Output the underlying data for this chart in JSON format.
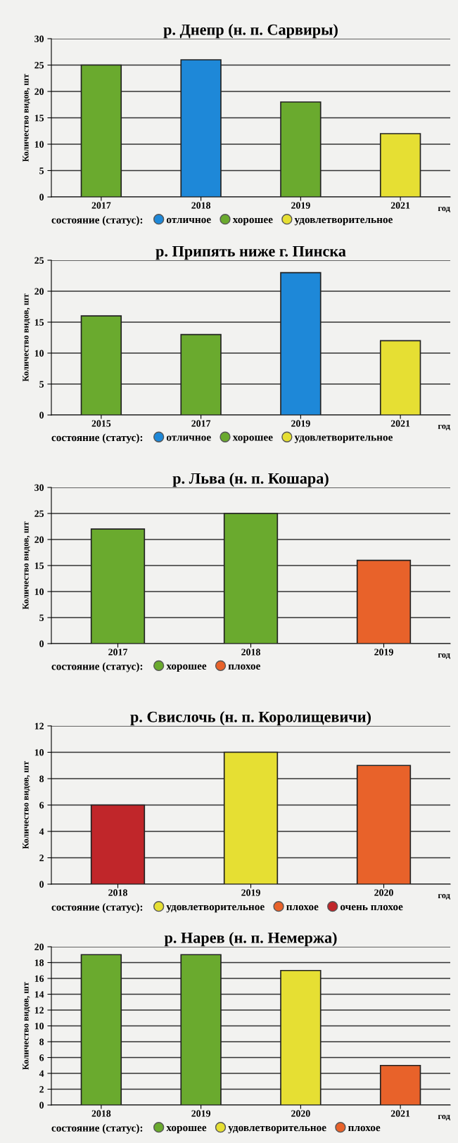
{
  "chart_data": [
    {
      "type": "bar",
      "title": "р. Днепр (н. п. Сарвиры)",
      "xlabel": "год",
      "ylabel": "Количество видов, шт",
      "legend_title": "состояние (статус):",
      "legend": "bottom",
      "grid": "y",
      "categories": [
        "2017",
        "2018",
        "2019",
        "2021"
      ],
      "ylim": [
        0,
        30
      ],
      "yticks": [
        0,
        5,
        10,
        15,
        20,
        25,
        30
      ],
      "series": [
        {
          "name": "отличное",
          "color": "#1e88d8",
          "values": [
            null,
            26,
            null,
            null
          ]
        },
        {
          "name": "хорошее",
          "color": "#6aaa2e",
          "values": [
            25,
            null,
            18,
            null
          ]
        },
        {
          "name": "удовлетворительное",
          "color": "#e6df33",
          "values": [
            null,
            null,
            null,
            12
          ]
        }
      ]
    },
    {
      "type": "bar",
      "title": "р. Припять ниже г. Пинска",
      "xlabel": "год",
      "ylabel": "Количество видов, шт",
      "legend_title": "состояние (статус):",
      "legend": "bottom",
      "grid": "y",
      "categories": [
        "2015",
        "2017",
        "2019",
        "2021"
      ],
      "ylim": [
        0,
        25
      ],
      "yticks": [
        0,
        5,
        10,
        15,
        20,
        25
      ],
      "series": [
        {
          "name": "отличное",
          "color": "#1e88d8",
          "values": [
            null,
            null,
            23,
            null
          ]
        },
        {
          "name": "хорошее",
          "color": "#6aaa2e",
          "values": [
            16,
            13,
            null,
            null
          ]
        },
        {
          "name": "удовлетворительное",
          "color": "#e6df33",
          "values": [
            null,
            null,
            null,
            12
          ]
        }
      ]
    },
    {
      "type": "bar",
      "title": "р. Льва (н. п. Кошара)",
      "xlabel": "год",
      "ylabel": "Количество видов, шт",
      "legend_title": "состояние (статус):",
      "legend": "bottom",
      "grid": "y",
      "categories": [
        "2017",
        "2018",
        "2019"
      ],
      "ylim": [
        0,
        30
      ],
      "yticks": [
        0,
        5,
        10,
        15,
        20,
        25,
        30
      ],
      "series": [
        {
          "name": "хорошее",
          "color": "#6aaa2e",
          "values": [
            22,
            25,
            null
          ]
        },
        {
          "name": "плохое",
          "color": "#e8622a",
          "values": [
            null,
            null,
            16
          ]
        }
      ]
    },
    {
      "type": "bar",
      "title": "р. Свислочь (н. п. Королищевичи)",
      "xlabel": "год",
      "ylabel": "Количество видов, шт",
      "legend_title": "состояние (статус):",
      "legend": "bottom",
      "grid": "y",
      "categories": [
        "2018",
        "2019",
        "2020"
      ],
      "ylim": [
        0,
        12
      ],
      "yticks": [
        0,
        2,
        4,
        6,
        8,
        10,
        12
      ],
      "series": [
        {
          "name": "удовлетворительное",
          "color": "#e6df33",
          "values": [
            null,
            10,
            null
          ]
        },
        {
          "name": "плохое",
          "color": "#e8622a",
          "values": [
            null,
            null,
            9
          ]
        },
        {
          "name": "очень плохое",
          "color": "#c0262a",
          "values": [
            6,
            null,
            null
          ]
        }
      ]
    },
    {
      "type": "bar",
      "title": "р. Нарев (н. п. Немержа)",
      "xlabel": "год",
      "ylabel": "Количество видов, шт",
      "legend_title": "состояние (статус):",
      "legend": "bottom",
      "grid": "y",
      "categories": [
        "2018",
        "2019",
        "2020",
        "2021"
      ],
      "ylim": [
        0,
        20
      ],
      "yticks": [
        0,
        2,
        4,
        6,
        8,
        10,
        12,
        14,
        16,
        18,
        20
      ],
      "series": [
        {
          "name": "хорошее",
          "color": "#6aaa2e",
          "values": [
            19,
            19,
            null,
            null
          ]
        },
        {
          "name": "удовлетворительное",
          "color": "#e6df33",
          "values": [
            null,
            null,
            17,
            null
          ]
        },
        {
          "name": "плохое",
          "color": "#e8622a",
          "values": [
            null,
            null,
            null,
            5
          ]
        }
      ]
    }
  ]
}
